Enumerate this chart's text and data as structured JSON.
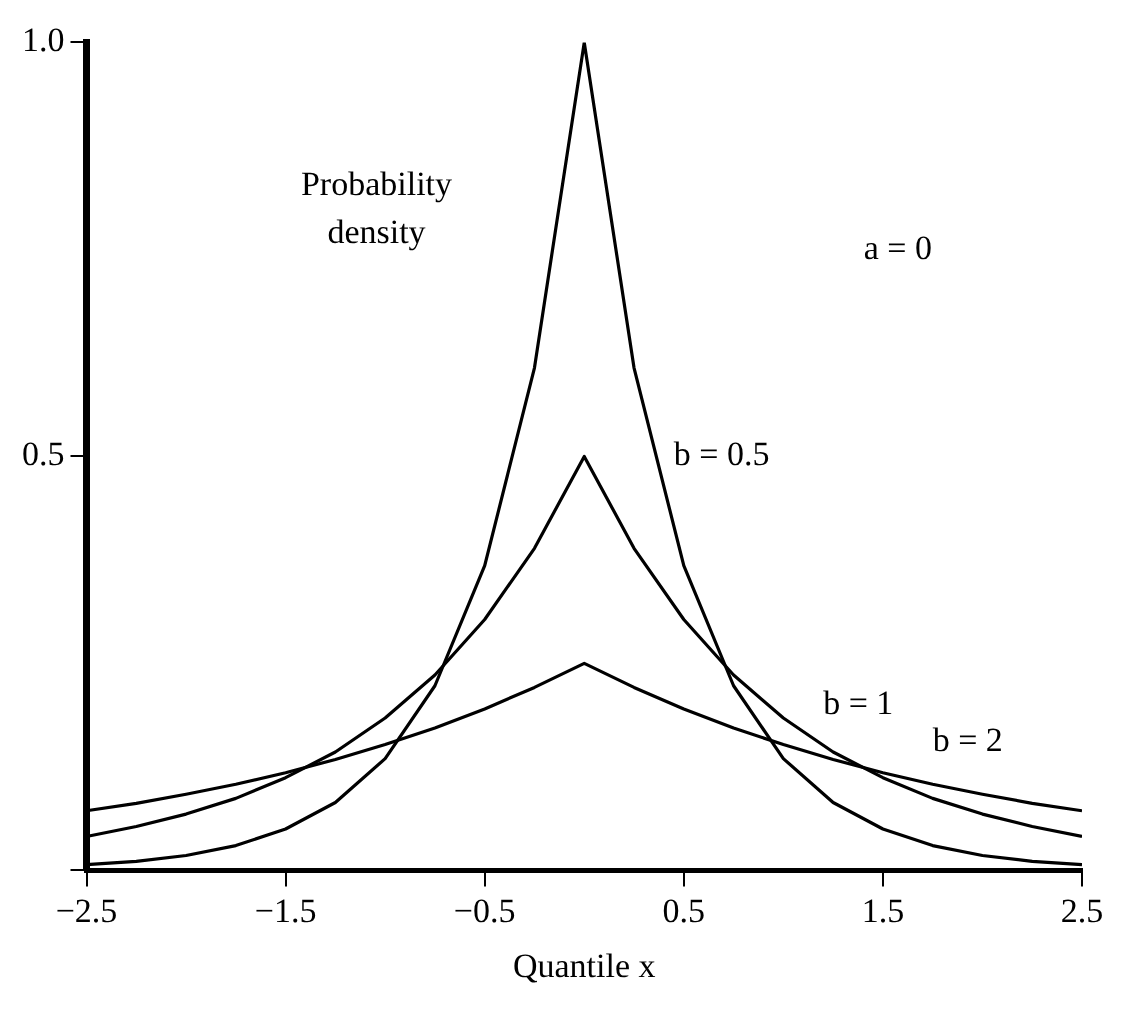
{
  "chart_data": {
    "type": "line",
    "xlabel": "Quantile x",
    "ylabel": "Probability density",
    "annotations": [
      "a = 0"
    ],
    "x": [
      -2.5,
      -2.25,
      -2,
      -1.75,
      -1.5,
      -1.25,
      -1,
      -0.75,
      -0.5,
      -0.25,
      0,
      0.25,
      0.5,
      0.75,
      1,
      1.25,
      1.5,
      1.75,
      2,
      2.25,
      2.5
    ],
    "series": [
      {
        "name": "b = 0.5",
        "color": "#000000",
        "values": [
          0.007,
          0.011,
          0.018,
          0.03,
          0.05,
          0.082,
          0.135,
          0.223,
          0.368,
          0.607,
          1,
          0.607,
          0.368,
          0.223,
          0.135,
          0.082,
          0.05,
          0.03,
          0.018,
          0.011,
          0.007
        ]
      },
      {
        "name": "b = 1",
        "color": "#000000",
        "values": [
          0.041,
          0.053,
          0.068,
          0.087,
          0.112,
          0.143,
          0.184,
          0.236,
          0.303,
          0.389,
          0.5,
          0.389,
          0.303,
          0.236,
          0.184,
          0.143,
          0.112,
          0.087,
          0.068,
          0.053,
          0.041
        ]
      },
      {
        "name": "b = 2",
        "color": "#000000",
        "values": [
          0.072,
          0.081,
          0.092,
          0.104,
          0.118,
          0.134,
          0.152,
          0.172,
          0.195,
          0.221,
          0.25,
          0.221,
          0.195,
          0.172,
          0.152,
          0.134,
          0.118,
          0.104,
          0.092,
          0.081,
          0.072
        ]
      }
    ],
    "xlim": [
      -2.5,
      2.5
    ],
    "xticks": [
      {
        "value": -2.5,
        "label": "−2.5"
      },
      {
        "value": -1.5,
        "label": "−1.5"
      },
      {
        "value": -0.5,
        "label": "−0.5"
      },
      0.5,
      1.5,
      2.5
    ],
    "ylim": [
      0,
      1
    ],
    "yticks": [
      {
        "value": 0,
        "label": null
      },
      0.5,
      {
        "value": 1,
        "label": "1.0"
      }
    ],
    "grid": false,
    "legend": false,
    "marker": "none",
    "line_style": "solid"
  }
}
